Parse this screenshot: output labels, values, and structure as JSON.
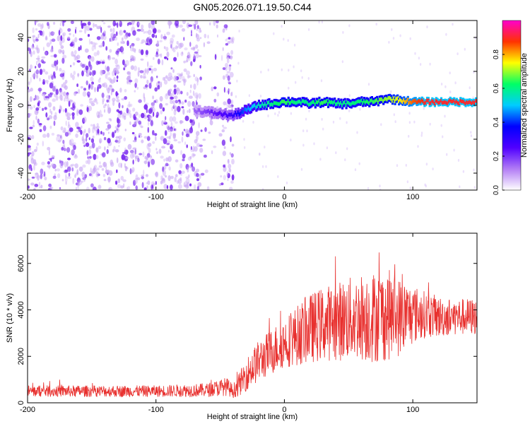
{
  "title": "GN05.2026.071.19.50.C44",
  "colors": {
    "snr_line": "#e8302e",
    "background": "#ffffff",
    "axis": "#000000",
    "spectrogram_noise": "#7b2cf0",
    "spectrogram_noise_light": "#c9a8f5",
    "colorbar_stops": [
      "#ffffff",
      "#b27cf5",
      "#5000ff",
      "#0000ff",
      "#00ccff",
      "#00ff66",
      "#ffff00",
      "#ff3300",
      "#ff00cc"
    ]
  },
  "chart_data": [
    {
      "id": "spectrogram",
      "type": "heatmap",
      "title": "GN05.2026.071.19.50.C44",
      "xlabel": "Height of straight line (km)",
      "ylabel": "Frequency (Hz)",
      "xlim": [
        -200,
        150
      ],
      "ylim": [
        -50,
        50
      ],
      "xticks": [
        -200,
        -100,
        0,
        100
      ],
      "xtick_labels": [
        "-200",
        "-100",
        "0",
        "100"
      ],
      "yticks": [
        -40,
        -20,
        0,
        20,
        40
      ],
      "ytick_labels": [
        "-40",
        "-20",
        "0",
        "20",
        "40"
      ],
      "noise_region_x": [
        -200,
        -40
      ],
      "signal_track": {
        "x": [
          -70,
          -60,
          -50,
          -40,
          -30,
          -20,
          -10,
          0,
          10,
          20,
          30,
          40,
          50,
          60,
          70,
          80,
          90,
          100,
          110,
          120,
          130,
          140,
          150
        ],
        "freq": [
          -3,
          -4,
          -5,
          -6,
          -3,
          0,
          1,
          2,
          2,
          1,
          2,
          1,
          1,
          2,
          2,
          4,
          3,
          2,
          2,
          2,
          2,
          2,
          2
        ],
        "amplitude": [
          0.15,
          0.2,
          0.25,
          0.3,
          0.45,
          0.55,
          0.6,
          0.65,
          0.6,
          0.6,
          0.65,
          0.6,
          0.6,
          0.62,
          0.65,
          0.7,
          0.75,
          0.85,
          0.9,
          0.9,
          0.9,
          0.9,
          0.9
        ]
      },
      "colorbar": {
        "label": "Normalized spectral amplitude",
        "range": [
          0,
          1
        ],
        "ticks": [
          0.0,
          0.2,
          0.4,
          0.6,
          0.8
        ],
        "tick_labels": [
          "0.0",
          "0.2",
          "0.4",
          "0.6",
          "0.8"
        ]
      }
    },
    {
      "id": "snr",
      "type": "line",
      "xlabel": "Height of straight line (km)",
      "ylabel": "SNR (10 * v/v)",
      "xlim": [
        -200,
        150
      ],
      "ylim": [
        0,
        7300
      ],
      "xticks": [
        -200,
        -100,
        0,
        100
      ],
      "xtick_labels": [
        "-200",
        "-100",
        "0",
        "100"
      ],
      "yticks": [
        0,
        2000,
        4000,
        6000
      ],
      "ytick_labels": [
        "0",
        "2000",
        "4000",
        "6000"
      ],
      "envelope": {
        "x": [
          -200,
          -150,
          -100,
          -60,
          -45,
          -40,
          -35,
          -30,
          -20,
          -10,
          0,
          10,
          20,
          30,
          40,
          50,
          60,
          70,
          80,
          90,
          100,
          110,
          120,
          130,
          140,
          150
        ],
        "mean": [
          500,
          500,
          500,
          550,
          700,
          500,
          800,
          1200,
          1800,
          2200,
          2600,
          2900,
          3200,
          3400,
          3500,
          3600,
          3700,
          3700,
          3800,
          3700,
          3800,
          3800,
          3700,
          3700,
          3700,
          3700
        ],
        "spread": [
          250,
          250,
          250,
          300,
          400,
          300,
          500,
          700,
          900,
          1000,
          1100,
          1300,
          1500,
          1600,
          1700,
          1800,
          1900,
          2000,
          2000,
          1700,
          1300,
          1000,
          900,
          800,
          800,
          800
        ]
      }
    }
  ]
}
